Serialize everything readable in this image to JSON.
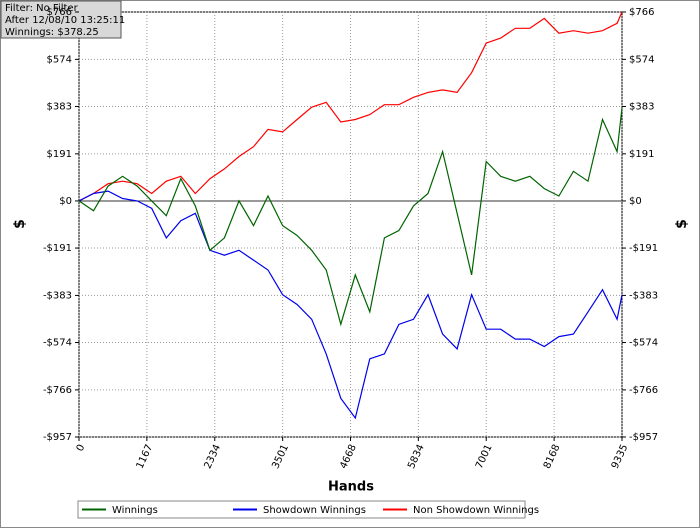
{
  "chart_data": {
    "type": "line",
    "annotations": [
      "Filter: No Filter",
      "After 12/08/10 13:25:11",
      "Winnings: $378.25"
    ],
    "xlabel": "Hands",
    "ylabel": "$",
    "x": [
      0,
      250,
      500,
      750,
      1000,
      1250,
      1500,
      1750,
      2000,
      2250,
      2500,
      2750,
      3000,
      3250,
      3500,
      3750,
      4000,
      4250,
      4500,
      4750,
      5000,
      5250,
      5500,
      5750,
      6000,
      6250,
      6500,
      6750,
      7000,
      7250,
      7500,
      7750,
      8000,
      8250,
      8500,
      8750,
      9000,
      9250,
      9335
    ],
    "series": [
      {
        "name": "Winnings",
        "color": "#006400",
        "values": [
          0,
          -40,
          60,
          100,
          60,
          0,
          -60,
          90,
          -20,
          -200,
          -150,
          0,
          -100,
          20,
          -100,
          -140,
          -200,
          -280,
          -500,
          -300,
          -450,
          -150,
          -120,
          -20,
          30,
          200,
          -50,
          -300,
          160,
          100,
          80,
          100,
          50,
          20,
          120,
          80,
          330,
          200,
          378.25
        ]
      },
      {
        "name": "Showdown Winnings",
        "color": "#0000ee",
        "values": [
          0,
          30,
          40,
          10,
          0,
          -30,
          -150,
          -80,
          -50,
          -200,
          -220,
          -200,
          -240,
          -280,
          -380,
          -420,
          -480,
          -620,
          -800,
          -880,
          -640,
          -620,
          -500,
          -480,
          -380,
          -540,
          -600,
          -380,
          -520,
          -520,
          -560,
          -560,
          -590,
          -550,
          -540,
          -450,
          -360,
          -480,
          -380
        ]
      },
      {
        "name": "Non Showdown Winnings",
        "color": "#ff0000",
        "values": [
          0,
          30,
          70,
          80,
          70,
          30,
          80,
          100,
          30,
          90,
          130,
          180,
          220,
          290,
          280,
          330,
          380,
          400,
          320,
          330,
          350,
          390,
          390,
          420,
          440,
          450,
          440,
          520,
          640,
          660,
          700,
          700,
          740,
          680,
          690,
          680,
          690,
          720,
          766
        ]
      }
    ],
    "xlim": [
      0,
      9335
    ],
    "xticks": [
      0,
      1167,
      2334,
      3501,
      4668,
      5834,
      7001,
      8168,
      9335
    ],
    "ylim": [
      -957,
      766
    ],
    "yticks": [
      {
        "value": -957,
        "label": "-$957"
      },
      {
        "value": -766,
        "label": "-$766"
      },
      {
        "value": -574,
        "label": "-$574"
      },
      {
        "value": -383,
        "label": "-$383"
      },
      {
        "value": -191,
        "label": "-$191"
      },
      {
        "value": 0,
        "label": "$0"
      },
      {
        "value": 191,
        "label": "$191"
      },
      {
        "value": 383,
        "label": "$383"
      },
      {
        "value": 574,
        "label": "$574"
      },
      {
        "value": 766,
        "label": "$766"
      }
    ],
    "grid": true,
    "legend": "bottom"
  }
}
